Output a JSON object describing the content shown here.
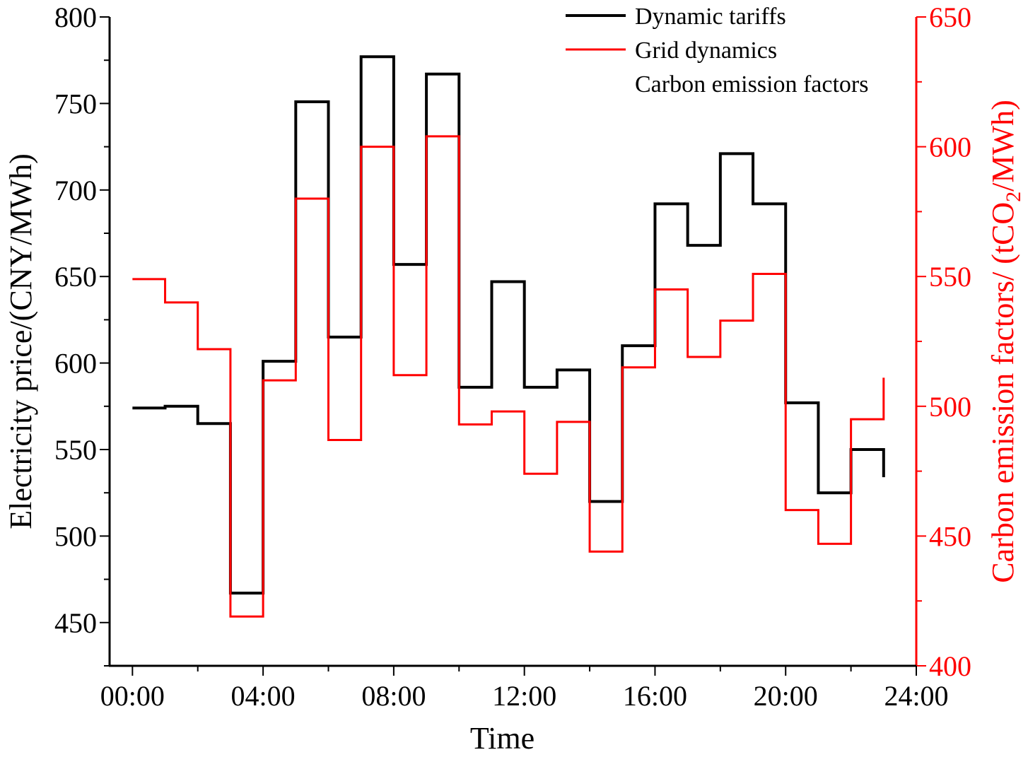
{
  "chart_data": {
    "type": "line",
    "step": "post",
    "x_hours": [
      0,
      1,
      2,
      3,
      4,
      5,
      6,
      7,
      8,
      9,
      10,
      11,
      12,
      13,
      14,
      15,
      16,
      17,
      18,
      19,
      20,
      21,
      22,
      23
    ],
    "x_ticks": [
      {
        "hour": 0,
        "label": "00:00"
      },
      {
        "hour": 4,
        "label": "04:00"
      },
      {
        "hour": 8,
        "label": "08:00"
      },
      {
        "hour": 12,
        "label": "12:00"
      },
      {
        "hour": 16,
        "label": "16:00"
      },
      {
        "hour": 20,
        "label": "20:00"
      },
      {
        "hour": 24,
        "label": "24:00"
      }
    ],
    "x_range": [
      -0.7,
      24
    ],
    "xlabel": "Time",
    "left_axis": {
      "label": "Electricity price/(CNY/MWh)",
      "range": [
        425,
        800
      ],
      "ticks": [
        450,
        500,
        550,
        600,
        650,
        700,
        750,
        800
      ],
      "color": "#000000"
    },
    "right_axis": {
      "label_main": "Carbon emission factors/ (tCO",
      "label_sub": "2",
      "label_end": "/MWh)",
      "range": [
        400,
        650
      ],
      "ticks": [
        400,
        450,
        500,
        550,
        600,
        650
      ],
      "color": "#ff0000"
    },
    "series": [
      {
        "name": "Dynamic tariffs",
        "axis": "left",
        "color": "#000000",
        "values": [
          574,
          575,
          565,
          467,
          601,
          751,
          615,
          777,
          657,
          767,
          586,
          647,
          586,
          596,
          520,
          610,
          692,
          668,
          721,
          692,
          577,
          525,
          550,
          534
        ]
      },
      {
        "name": "Grid dynamics",
        "axis": "right",
        "color": "#ff0000",
        "values": [
          549,
          540,
          522,
          419,
          510,
          580,
          487,
          600,
          512,
          604,
          493,
          498,
          474,
          494,
          444,
          515,
          545,
          519,
          533,
          551,
          460,
          447,
          495,
          511
        ]
      }
    ],
    "legend": {
      "placement": "top-right",
      "entries": [
        {
          "label": "Dynamic tariffs",
          "color": "#000000"
        },
        {
          "label": "Grid dynamics",
          "color": "#ff0000"
        },
        {
          "label": "Carbon emission factors",
          "color": "none"
        }
      ]
    }
  }
}
